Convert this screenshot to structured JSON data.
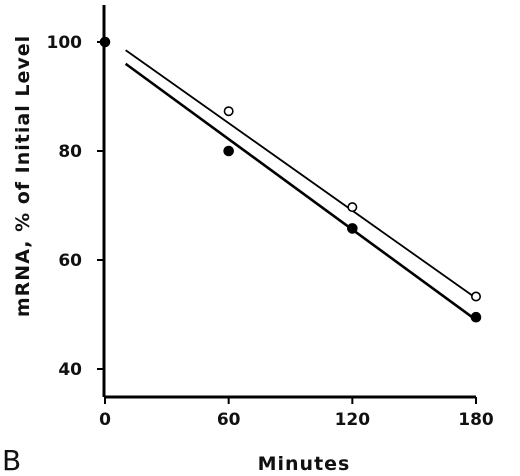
{
  "chart_data": {
    "type": "scatter",
    "panel_label": "B",
    "xlabel": "Minutes",
    "ylabel": "mRNA, % of Initial Level",
    "xlim": [
      -2,
      192
    ],
    "ylim": [
      40,
      107
    ],
    "xticks": [
      0,
      60,
      120,
      180
    ],
    "yticks": [
      40,
      60,
      80,
      100
    ],
    "xtick_labels": [
      "0",
      "60",
      "120",
      "180"
    ],
    "ytick_labels": [
      "40",
      "60",
      "80",
      "100"
    ],
    "grid": false,
    "series": [
      {
        "marker": "filled-circle",
        "color": "#000000",
        "x": [
          0,
          60,
          120,
          180
        ],
        "y": [
          100,
          80,
          65.8,
          49.5
        ],
        "fit_line": {
          "x": [
            10,
            180
          ],
          "y": [
            96,
            49
          ]
        }
      },
      {
        "marker": "open-circle",
        "color": "#000000",
        "x": [
          60,
          120,
          180
        ],
        "y": [
          87.3,
          69.7,
          53.3
        ],
        "fit_line": {
          "x": [
            10,
            180
          ],
          "y": [
            98.5,
            53
          ]
        }
      }
    ]
  }
}
